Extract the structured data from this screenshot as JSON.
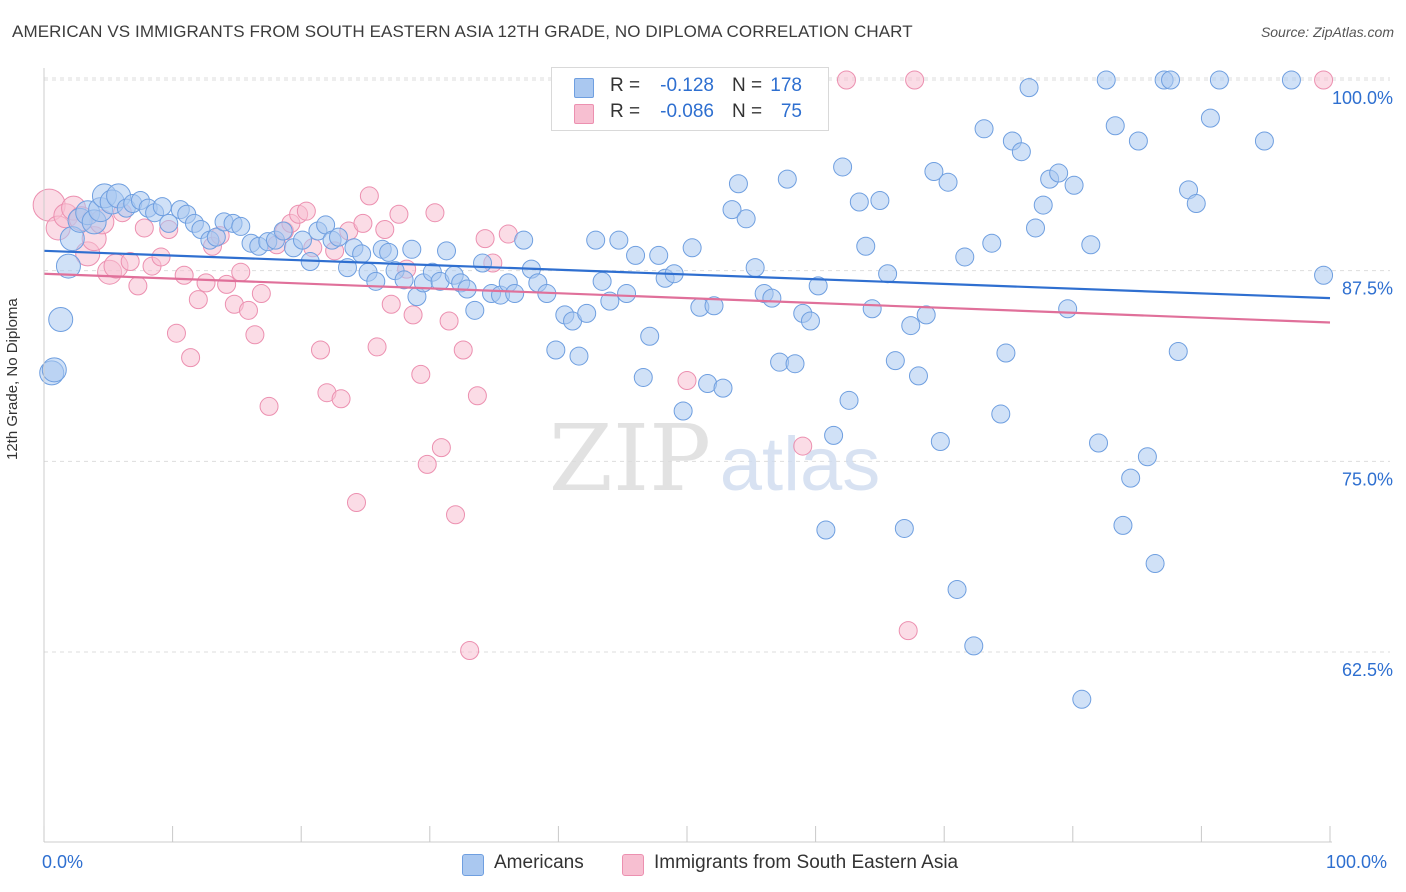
{
  "header": {
    "title": "AMERICAN VS IMMIGRANTS FROM SOUTH EASTERN ASIA 12TH GRADE, NO DIPLOMA CORRELATION CHART",
    "source": "Source: ZipAtlas.com"
  },
  "watermark": {
    "zip": "ZIP",
    "atlas": "atlas"
  },
  "stats": {
    "americans": {
      "r_label": "R =",
      "r_value": "-0.128",
      "n_label": "N =",
      "n_value": "178"
    },
    "immigrants": {
      "r_label": "R =",
      "r_value": "-0.086",
      "n_label": "N =",
      "n_value": "75"
    }
  },
  "legend": {
    "americans": "Americans",
    "immigrants": "Immigrants from South Eastern Asia"
  },
  "axis": {
    "x_min_label": "0.0%",
    "x_max_label": "100.0%",
    "y_title": "12th Grade, No Diploma"
  },
  "colors": {
    "americans_fill": "#aac8f0",
    "americans_stroke": "#6f9fe0",
    "americans_line": "#2f6fd0",
    "immigrants_fill": "#f7bfd1",
    "immigrants_stroke": "#ec90b0",
    "immigrants_line": "#e0709a",
    "tick_label": "#2e6fd0",
    "grid": "#dddddd"
  },
  "chart_data": {
    "type": "scatter",
    "title": "AMERICAN VS IMMIGRANTS FROM SOUTH EASTERN ASIA 12TH GRADE, NO DIPLOMA CORRELATION CHART",
    "xlabel": "",
    "ylabel": "12th Grade, No Diploma",
    "xlim": [
      0,
      100
    ],
    "ylim": [
      50,
      101
    ],
    "yticks": [
      {
        "value": 100,
        "label": "100.0%"
      },
      {
        "value": 87.5,
        "label": "87.5%"
      },
      {
        "value": 75,
        "label": "75.0%"
      },
      {
        "value": 62.5,
        "label": "62.5%"
      }
    ],
    "series": [
      {
        "name": "Americans",
        "r": -0.128,
        "n": 178,
        "trend": {
          "x": [
            0,
            100
          ],
          "y": [
            88.8,
            85.7
          ]
        },
        "points": [
          [
            0.6,
            80.8
          ],
          [
            0.8,
            81.0
          ],
          [
            1.3,
            84.3
          ],
          [
            1.9,
            87.8
          ],
          [
            2.2,
            89.6
          ],
          [
            2.8,
            90.8
          ],
          [
            3.4,
            91.3
          ],
          [
            3.9,
            90.7
          ],
          [
            4.4,
            91.5
          ],
          [
            4.7,
            92.4
          ],
          [
            5.3,
            92.0
          ],
          [
            5.8,
            92.4
          ],
          [
            6.4,
            91.6
          ],
          [
            6.9,
            91.9
          ],
          [
            7.5,
            92.1
          ],
          [
            8.1,
            91.6
          ],
          [
            8.6,
            91.3
          ],
          [
            9.2,
            91.7
          ],
          [
            9.7,
            90.6
          ],
          [
            10.6,
            91.5
          ],
          [
            11.1,
            91.2
          ],
          [
            11.7,
            90.6
          ],
          [
            12.2,
            90.2
          ],
          [
            12.9,
            89.5
          ],
          [
            13.4,
            89.7
          ],
          [
            14.0,
            90.7
          ],
          [
            14.7,
            90.6
          ],
          [
            15.3,
            90.4
          ],
          [
            16.1,
            89.3
          ],
          [
            16.7,
            89.1
          ],
          [
            17.4,
            89.4
          ],
          [
            18.0,
            89.5
          ],
          [
            18.6,
            90.1
          ],
          [
            19.4,
            89.0
          ],
          [
            20.1,
            89.5
          ],
          [
            20.7,
            88.1
          ],
          [
            21.3,
            90.1
          ],
          [
            21.9,
            90.5
          ],
          [
            22.4,
            89.5
          ],
          [
            22.9,
            89.7
          ],
          [
            23.6,
            87.7
          ],
          [
            24.1,
            89.0
          ],
          [
            24.7,
            88.6
          ],
          [
            25.2,
            87.4
          ],
          [
            25.8,
            86.8
          ],
          [
            26.3,
            88.9
          ],
          [
            26.8,
            88.7
          ],
          [
            27.3,
            87.5
          ],
          [
            28.0,
            86.9
          ],
          [
            28.6,
            88.9
          ],
          [
            29.0,
            85.8
          ],
          [
            29.5,
            86.7
          ],
          [
            30.2,
            87.4
          ],
          [
            30.8,
            86.8
          ],
          [
            31.3,
            88.8
          ],
          [
            31.9,
            87.2
          ],
          [
            32.4,
            86.7
          ],
          [
            32.9,
            86.3
          ],
          [
            33.5,
            84.9
          ],
          [
            34.1,
            88.0
          ],
          [
            34.8,
            86.0
          ],
          [
            35.5,
            85.9
          ],
          [
            36.1,
            86.7
          ],
          [
            36.6,
            86.0
          ],
          [
            37.3,
            89.5
          ],
          [
            37.9,
            87.6
          ],
          [
            38.4,
            86.7
          ],
          [
            39.1,
            86.0
          ],
          [
            39.8,
            82.3
          ],
          [
            40.5,
            84.6
          ],
          [
            41.1,
            84.2
          ],
          [
            41.6,
            81.9
          ],
          [
            42.2,
            84.7
          ],
          [
            42.9,
            89.5
          ],
          [
            43.4,
            86.8
          ],
          [
            44.0,
            85.5
          ],
          [
            44.7,
            89.5
          ],
          [
            45.3,
            86.0
          ],
          [
            46.0,
            88.5
          ],
          [
            46.6,
            80.5
          ],
          [
            47.1,
            83.2
          ],
          [
            47.8,
            88.5
          ],
          [
            48.3,
            87.0
          ],
          [
            49.0,
            87.3
          ],
          [
            49.7,
            78.3
          ],
          [
            50.4,
            89.0
          ],
          [
            51.0,
            85.1
          ],
          [
            51.6,
            80.1
          ],
          [
            52.1,
            85.2
          ],
          [
            52.8,
            79.8
          ],
          [
            53.5,
            91.5
          ],
          [
            54.0,
            93.2
          ],
          [
            54.6,
            90.9
          ],
          [
            55.3,
            87.7
          ],
          [
            56.0,
            86.0
          ],
          [
            56.6,
            85.7
          ],
          [
            57.2,
            81.5
          ],
          [
            57.8,
            93.5
          ],
          [
            58.4,
            81.4
          ],
          [
            59.0,
            84.7
          ],
          [
            59.6,
            84.2
          ],
          [
            60.2,
            86.5
          ],
          [
            60.8,
            70.5
          ],
          [
            61.4,
            76.7
          ],
          [
            62.1,
            94.3
          ],
          [
            62.6,
            79.0
          ],
          [
            63.4,
            92.0
          ],
          [
            63.9,
            89.1
          ],
          [
            64.4,
            85.0
          ],
          [
            65.0,
            92.1
          ],
          [
            65.6,
            87.3
          ],
          [
            66.2,
            81.6
          ],
          [
            66.9,
            70.6
          ],
          [
            67.4,
            83.9
          ],
          [
            68.0,
            80.6
          ],
          [
            68.6,
            84.6
          ],
          [
            69.2,
            94.0
          ],
          [
            69.7,
            76.3
          ],
          [
            70.3,
            93.3
          ],
          [
            71.0,
            66.6
          ],
          [
            71.6,
            88.4
          ],
          [
            72.3,
            62.9
          ],
          [
            73.1,
            96.8
          ],
          [
            73.7,
            89.3
          ],
          [
            74.4,
            78.1
          ],
          [
            74.8,
            82.1
          ],
          [
            75.3,
            96.0
          ],
          [
            76.0,
            95.3
          ],
          [
            76.6,
            99.5
          ],
          [
            77.1,
            90.3
          ],
          [
            77.7,
            91.8
          ],
          [
            78.2,
            93.5
          ],
          [
            78.9,
            93.9
          ],
          [
            79.6,
            85.0
          ],
          [
            80.1,
            93.1
          ],
          [
            80.7,
            59.4
          ],
          [
            81.4,
            89.2
          ],
          [
            82.0,
            76.2
          ],
          [
            82.6,
            100.0
          ],
          [
            83.3,
            97.0
          ],
          [
            83.9,
            70.8
          ],
          [
            84.5,
            73.9
          ],
          [
            85.1,
            96.0
          ],
          [
            85.8,
            75.3
          ],
          [
            86.4,
            68.3
          ],
          [
            87.1,
            100.0
          ],
          [
            87.6,
            100.0
          ],
          [
            88.2,
            82.2
          ],
          [
            89.0,
            92.8
          ],
          [
            89.6,
            91.9
          ],
          [
            90.7,
            97.5
          ],
          [
            91.4,
            100.0
          ],
          [
            94.9,
            96.0
          ],
          [
            97.0,
            100.0
          ],
          [
            99.5,
            87.2
          ]
        ]
      },
      {
        "name": "Immigrants from South Eastern Asia",
        "r": -0.086,
        "n": 75,
        "trend": {
          "x": [
            0,
            100
          ],
          "y": [
            87.3,
            84.1
          ]
        },
        "points": [
          [
            0.4,
            91.8
          ],
          [
            1.1,
            90.3
          ],
          [
            1.7,
            91.1
          ],
          [
            2.3,
            91.6
          ],
          [
            2.9,
            90.9
          ],
          [
            3.4,
            88.6
          ],
          [
            3.9,
            89.6
          ],
          [
            4.5,
            90.7
          ],
          [
            5.1,
            87.4
          ],
          [
            5.6,
            87.8
          ],
          [
            6.1,
            91.3
          ],
          [
            6.7,
            88.1
          ],
          [
            7.3,
            86.5
          ],
          [
            7.8,
            90.3
          ],
          [
            8.4,
            87.8
          ],
          [
            9.1,
            88.4
          ],
          [
            9.7,
            90.2
          ],
          [
            10.3,
            83.4
          ],
          [
            10.9,
            87.2
          ],
          [
            11.4,
            81.8
          ],
          [
            12.0,
            85.6
          ],
          [
            12.6,
            86.7
          ],
          [
            13.1,
            89.1
          ],
          [
            13.7,
            89.8
          ],
          [
            14.2,
            86.6
          ],
          [
            14.8,
            85.3
          ],
          [
            15.3,
            87.4
          ],
          [
            15.9,
            84.9
          ],
          [
            16.4,
            83.3
          ],
          [
            16.9,
            86.0
          ],
          [
            17.5,
            78.6
          ],
          [
            18.1,
            89.2
          ],
          [
            18.7,
            90.1
          ],
          [
            19.2,
            90.6
          ],
          [
            19.8,
            91.2
          ],
          [
            20.4,
            91.4
          ],
          [
            20.9,
            89.0
          ],
          [
            21.5,
            82.3
          ],
          [
            22.0,
            79.5
          ],
          [
            22.6,
            88.8
          ],
          [
            23.1,
            79.1
          ],
          [
            23.7,
            90.1
          ],
          [
            24.3,
            72.3
          ],
          [
            24.8,
            90.6
          ],
          [
            25.3,
            92.4
          ],
          [
            25.9,
            82.5
          ],
          [
            26.5,
            90.2
          ],
          [
            27.0,
            85.3
          ],
          [
            27.6,
            91.2
          ],
          [
            28.2,
            87.6
          ],
          [
            28.7,
            84.6
          ],
          [
            29.3,
            80.7
          ],
          [
            29.8,
            74.8
          ],
          [
            30.4,
            91.3
          ],
          [
            30.9,
            75.9
          ],
          [
            31.5,
            84.2
          ],
          [
            32.0,
            71.5
          ],
          [
            32.6,
            82.3
          ],
          [
            33.1,
            62.6
          ],
          [
            33.7,
            79.3
          ],
          [
            34.3,
            89.6
          ],
          [
            34.9,
            88.0
          ],
          [
            36.1,
            89.9
          ],
          [
            50.0,
            80.3
          ],
          [
            59.0,
            76.0
          ],
          [
            62.4,
            100.0
          ],
          [
            67.2,
            63.9
          ],
          [
            67.7,
            100.0
          ],
          [
            99.5,
            100.0
          ]
        ]
      }
    ]
  }
}
